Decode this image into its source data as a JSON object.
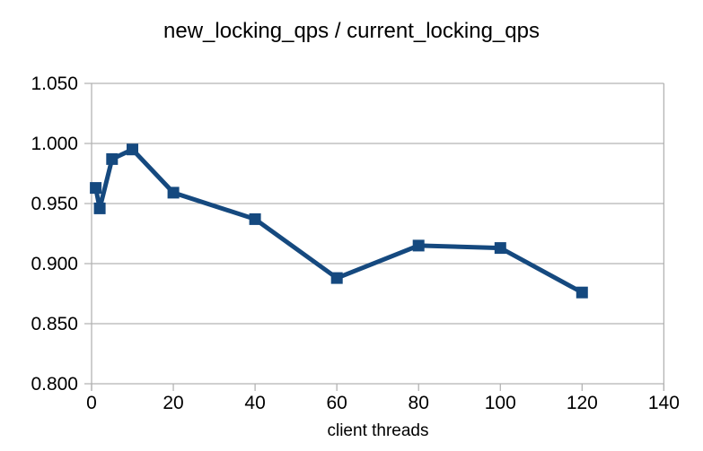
{
  "chart_data": {
    "type": "line",
    "title": "new_locking_qps / current_locking_qps",
    "xlabel": "client threads",
    "ylabel": "",
    "x": [
      1,
      2,
      5,
      10,
      20,
      40,
      60,
      80,
      100,
      120
    ],
    "values": [
      0.963,
      0.946,
      0.987,
      0.995,
      0.959,
      0.937,
      0.888,
      0.915,
      0.913,
      0.876
    ],
    "xlim": [
      0,
      140
    ],
    "ylim": [
      0.8,
      1.05
    ],
    "x_ticks": [
      "0",
      "20",
      "40",
      "60",
      "80",
      "100",
      "120",
      "140"
    ],
    "y_ticks": [
      "1.050",
      "1.000",
      "0.950",
      "0.900",
      "0.850",
      "0.800"
    ],
    "grid": "horizontal-major",
    "legend": "none",
    "marker": "square",
    "colors": {
      "series": "#15497f",
      "grid": "#b3b3b3",
      "text": "#000000",
      "background": "#ffffff"
    }
  }
}
